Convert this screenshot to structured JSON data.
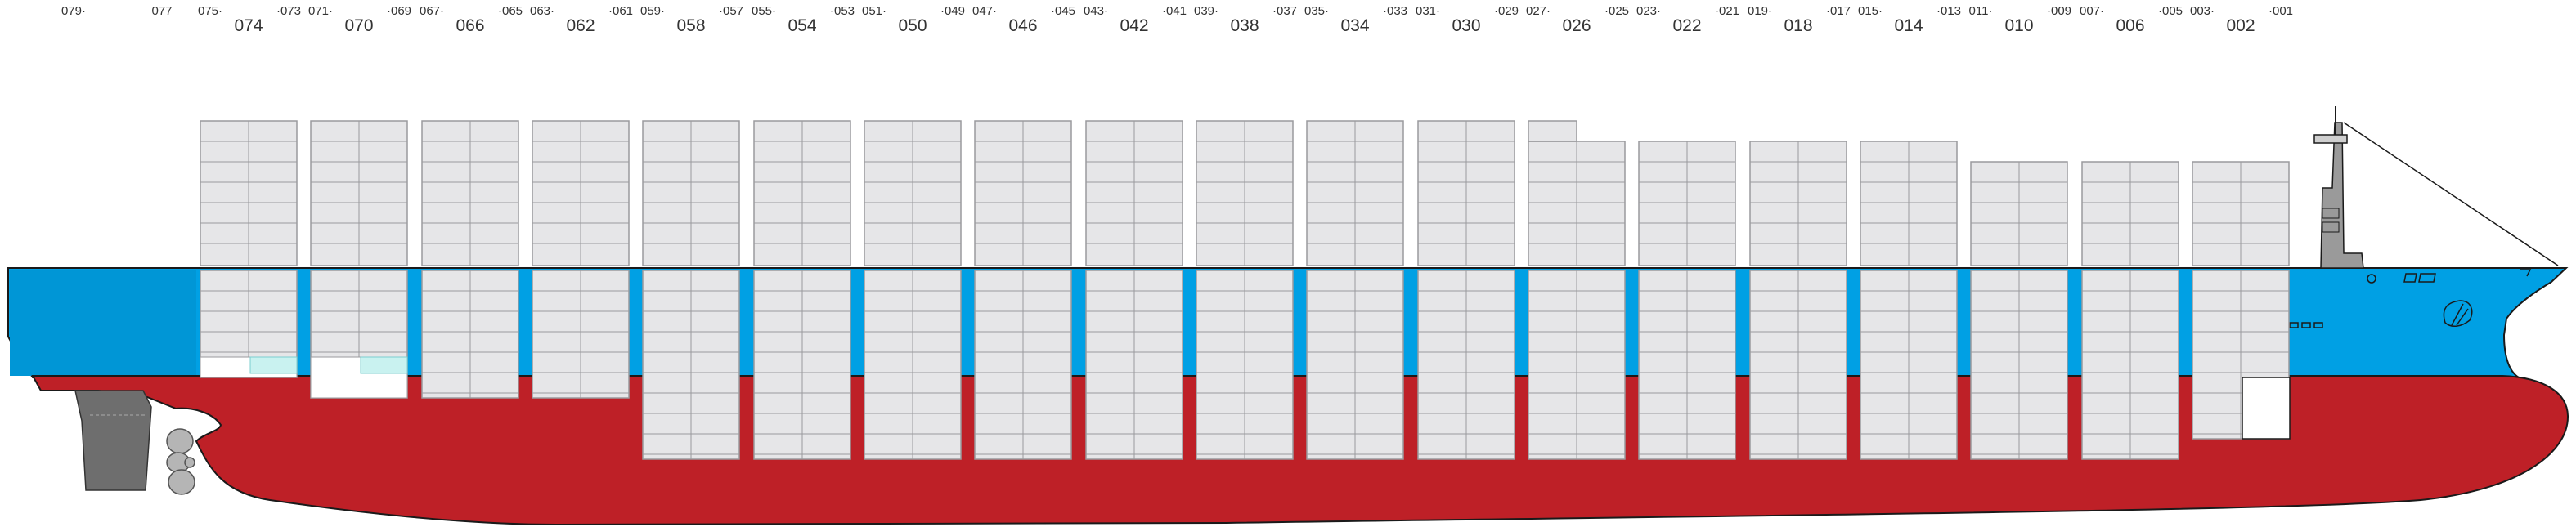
{
  "colors": {
    "hull_red": "#be2027",
    "hull_blue": "#00a0e4",
    "hull_blue_dark": "#0096d6",
    "container_fill": "#e6e6e8",
    "container_stroke": "#9a9a9e",
    "reefer_cyan": "#c9f2f0",
    "outline": "#1a1a1a",
    "machinery_grey": "#6e6e6e",
    "bridge_grey": "#9a9a9a"
  },
  "bays": [
    {
      "big": "074",
      "aft": "075·",
      "fwd": "·073"
    },
    {
      "big": "070",
      "aft": "071·",
      "fwd": "·069"
    },
    {
      "big": "066",
      "aft": "067·",
      "fwd": "·065"
    },
    {
      "big": "062",
      "aft": "063·",
      "fwd": "·061"
    },
    {
      "big": "058",
      "aft": "059·",
      "fwd": "·057"
    },
    {
      "big": "054",
      "aft": "055·",
      "fwd": "·053"
    },
    {
      "big": "050",
      "aft": "051·",
      "fwd": "·049"
    },
    {
      "big": "046",
      "aft": "047·",
      "fwd": "·045"
    },
    {
      "big": "042",
      "aft": "043·",
      "fwd": "·041"
    },
    {
      "big": "038",
      "aft": "039·",
      "fwd": "·037"
    },
    {
      "big": "034",
      "aft": "035·",
      "fwd": "·033"
    },
    {
      "big": "030",
      "aft": "031·",
      "fwd": "·029"
    },
    {
      "big": "026",
      "aft": "027·",
      "fwd": "·025"
    },
    {
      "big": "022",
      "aft": "023·",
      "fwd": "·021"
    },
    {
      "big": "018",
      "aft": "019·",
      "fwd": "·017"
    },
    {
      "big": "014",
      "aft": "015·",
      "fwd": "·013"
    },
    {
      "big": "010",
      "aft": "011·",
      "fwd": "·009"
    },
    {
      "big": "006",
      "aft": "007·",
      "fwd": "·005"
    },
    {
      "big": "002",
      "aft": "003·",
      "fwd": "·001"
    }
  ],
  "extra_labels": [
    "079·",
    "077"
  ]
}
